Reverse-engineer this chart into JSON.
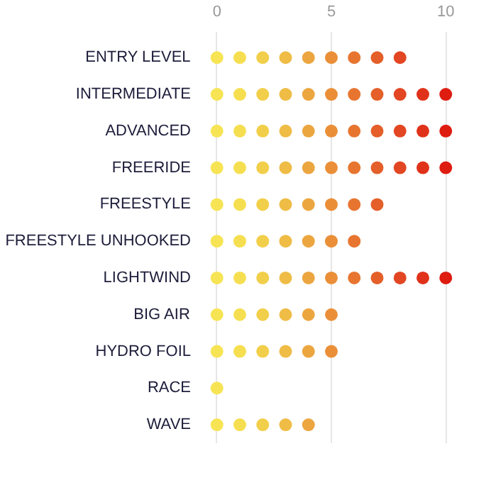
{
  "chart_data": {
    "type": "scatter",
    "orientation": "horizontal",
    "categories": [
      "ENTRY LEVEL",
      "INTERMEDIATE",
      "ADVANCED",
      "FREERIDE",
      "FREESTYLE",
      "FREESTYLE UNHOOKED",
      "LIGHTWIND",
      "BIG AIR",
      "HYDRO FOIL",
      "RACE",
      "WAVE"
    ],
    "series": [
      {
        "color": "#f6e454",
        "values": [
          0,
          0,
          0,
          0,
          0,
          0,
          0,
          0,
          0,
          0,
          0
        ]
      },
      {
        "color": "#f5df50",
        "values": [
          1,
          1,
          1,
          1,
          1,
          1,
          1,
          1,
          1,
          null,
          1
        ]
      },
      {
        "color": "#f2cf4a",
        "values": [
          2,
          2,
          2,
          2,
          2,
          2,
          2,
          2,
          2,
          null,
          2
        ]
      },
      {
        "color": "#efbc45",
        "values": [
          3,
          3,
          3,
          3,
          3,
          3,
          3,
          3,
          3,
          null,
          3
        ]
      },
      {
        "color": "#eca640",
        "values": [
          4,
          4,
          4,
          4,
          4,
          4,
          4,
          4,
          4,
          null,
          4
        ]
      },
      {
        "color": "#ea8f38",
        "values": [
          5,
          5,
          5,
          5,
          5,
          5,
          5,
          5,
          5,
          null,
          null
        ]
      },
      {
        "color": "#e77530",
        "values": [
          6,
          6,
          6,
          6,
          6,
          6,
          6,
          null,
          null,
          null,
          null
        ]
      },
      {
        "color": "#e45f29",
        "values": [
          7,
          7,
          7,
          7,
          7,
          null,
          7,
          null,
          null,
          null,
          null
        ]
      },
      {
        "color": "#e24622",
        "values": [
          8,
          8,
          8,
          8,
          null,
          null,
          8,
          null,
          null,
          null,
          null
        ]
      },
      {
        "color": "#e0321a",
        "values": [
          null,
          9,
          9,
          9,
          null,
          null,
          9,
          null,
          null,
          null,
          null
        ]
      },
      {
        "color": "#de1c10",
        "values": [
          null,
          10,
          10,
          10,
          null,
          null,
          10,
          null,
          null,
          null,
          null
        ]
      }
    ],
    "xlim": [
      0,
      10
    ],
    "xticks": [
      0,
      5,
      10
    ],
    "grid": "x",
    "marker": "circle"
  }
}
